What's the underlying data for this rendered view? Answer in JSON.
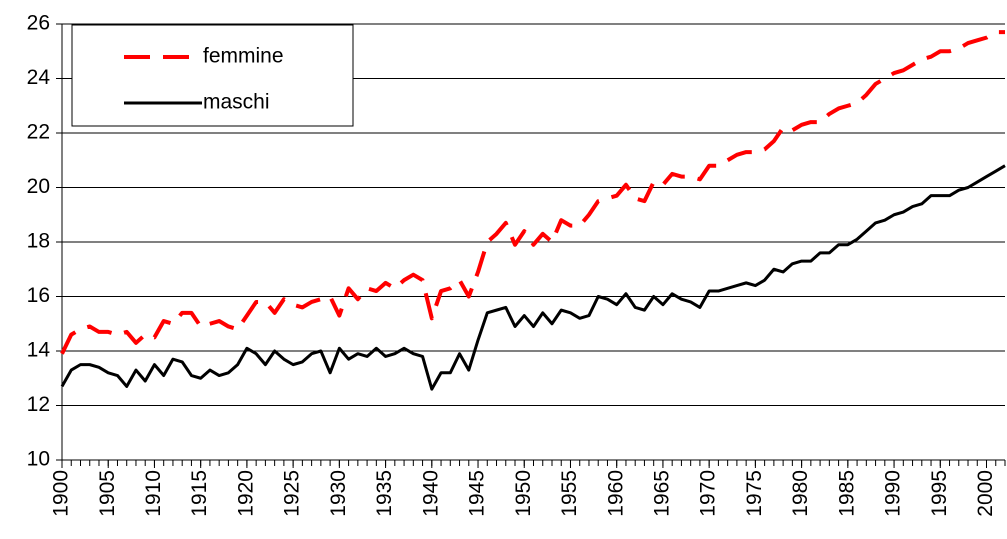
{
  "chart_data": {
    "type": "line",
    "x": [
      1900,
      1901,
      1902,
      1903,
      1904,
      1905,
      1906,
      1907,
      1908,
      1909,
      1910,
      1911,
      1912,
      1913,
      1914,
      1915,
      1916,
      1917,
      1918,
      1919,
      1920,
      1921,
      1922,
      1923,
      1924,
      1925,
      1926,
      1927,
      1928,
      1929,
      1930,
      1931,
      1932,
      1933,
      1934,
      1935,
      1936,
      1937,
      1938,
      1939,
      1940,
      1941,
      1942,
      1943,
      1944,
      1945,
      1946,
      1947,
      1948,
      1949,
      1950,
      1951,
      1952,
      1953,
      1954,
      1955,
      1956,
      1957,
      1958,
      1959,
      1960,
      1961,
      1962,
      1963,
      1964,
      1965,
      1966,
      1967,
      1968,
      1969,
      1970,
      1971,
      1972,
      1973,
      1974,
      1975,
      1976,
      1977,
      1978,
      1979,
      1980,
      1981,
      1982,
      1983,
      1984,
      1985,
      1986,
      1987,
      1988,
      1989,
      1990,
      1991,
      1992,
      1993,
      1994,
      1995,
      1996,
      1997,
      1998,
      1999,
      2000,
      2001,
      2002
    ],
    "series": [
      {
        "name": "femmine",
        "color": "#ff0000",
        "dashed": true,
        "values": [
          13.9,
          14.6,
          14.8,
          14.9,
          14.7,
          14.7,
          14.6,
          14.7,
          14.3,
          14.6,
          14.5,
          15.1,
          15.0,
          15.4,
          15.4,
          14.9,
          15.0,
          15.1,
          14.9,
          14.8,
          15.3,
          15.8,
          15.8,
          15.4,
          15.9,
          15.7,
          15.6,
          15.8,
          15.9,
          16.0,
          15.3,
          16.3,
          15.9,
          16.3,
          16.2,
          16.5,
          16.3,
          16.6,
          16.8,
          16.6,
          15.2,
          16.2,
          16.3,
          16.6,
          16.0,
          16.9,
          18.0,
          18.3,
          18.7,
          17.9,
          18.4,
          17.9,
          18.3,
          18.0,
          18.8,
          18.6,
          18.6,
          19.0,
          19.5,
          19.6,
          19.7,
          20.1,
          19.6,
          19.5,
          20.2,
          20.1,
          20.5,
          20.4,
          20.4,
          20.3,
          20.8,
          20.8,
          21.0,
          21.2,
          21.3,
          21.3,
          21.4,
          21.7,
          22.2,
          22.1,
          22.3,
          22.4,
          22.4,
          22.7,
          22.9,
          23.0,
          23.1,
          23.4,
          23.8,
          24.0,
          24.2,
          24.3,
          24.5,
          24.7,
          24.8,
          25.0,
          25.0,
          25.1,
          25.3,
          25.4,
          25.5,
          25.7,
          25.7
        ]
      },
      {
        "name": "maschi",
        "color": "#000000",
        "dashed": false,
        "values": [
          12.7,
          13.3,
          13.5,
          13.5,
          13.4,
          13.2,
          13.1,
          12.7,
          13.3,
          12.9,
          13.5,
          13.1,
          13.7,
          13.6,
          13.1,
          13.0,
          13.3,
          13.1,
          13.2,
          13.5,
          14.1,
          13.9,
          13.5,
          14.0,
          13.7,
          13.5,
          13.6,
          13.9,
          14.0,
          13.2,
          14.1,
          13.7,
          13.9,
          13.8,
          14.1,
          13.8,
          13.9,
          14.1,
          13.9,
          13.8,
          12.6,
          13.2,
          13.2,
          13.9,
          13.3,
          14.4,
          15.4,
          15.5,
          15.6,
          14.9,
          15.3,
          14.9,
          15.4,
          15.0,
          15.5,
          15.4,
          15.2,
          15.3,
          16.0,
          15.9,
          15.7,
          16.1,
          15.6,
          15.5,
          16.0,
          15.7,
          16.1,
          15.9,
          15.8,
          15.6,
          16.2,
          16.2,
          16.3,
          16.4,
          16.5,
          16.4,
          16.6,
          17.0,
          16.9,
          17.2,
          17.3,
          17.3,
          17.6,
          17.6,
          17.9,
          17.9,
          18.1,
          18.4,
          18.7,
          18.8,
          19.0,
          19.1,
          19.3,
          19.4,
          19.7,
          19.7,
          19.7,
          19.9,
          20.0,
          20.2,
          20.4,
          20.6,
          20.8
        ]
      }
    ],
    "xlim": [
      1900,
      2002
    ],
    "xticks": [
      1900,
      1905,
      1910,
      1915,
      1920,
      1925,
      1930,
      1935,
      1940,
      1945,
      1950,
      1955,
      1960,
      1965,
      1970,
      1975,
      1980,
      1985,
      1990,
      1995,
      2000
    ],
    "ylim": [
      10,
      26
    ],
    "yticks": [
      10,
      12,
      14,
      16,
      18,
      20,
      22,
      24,
      26
    ],
    "grid": true,
    "legend": "upper left"
  }
}
